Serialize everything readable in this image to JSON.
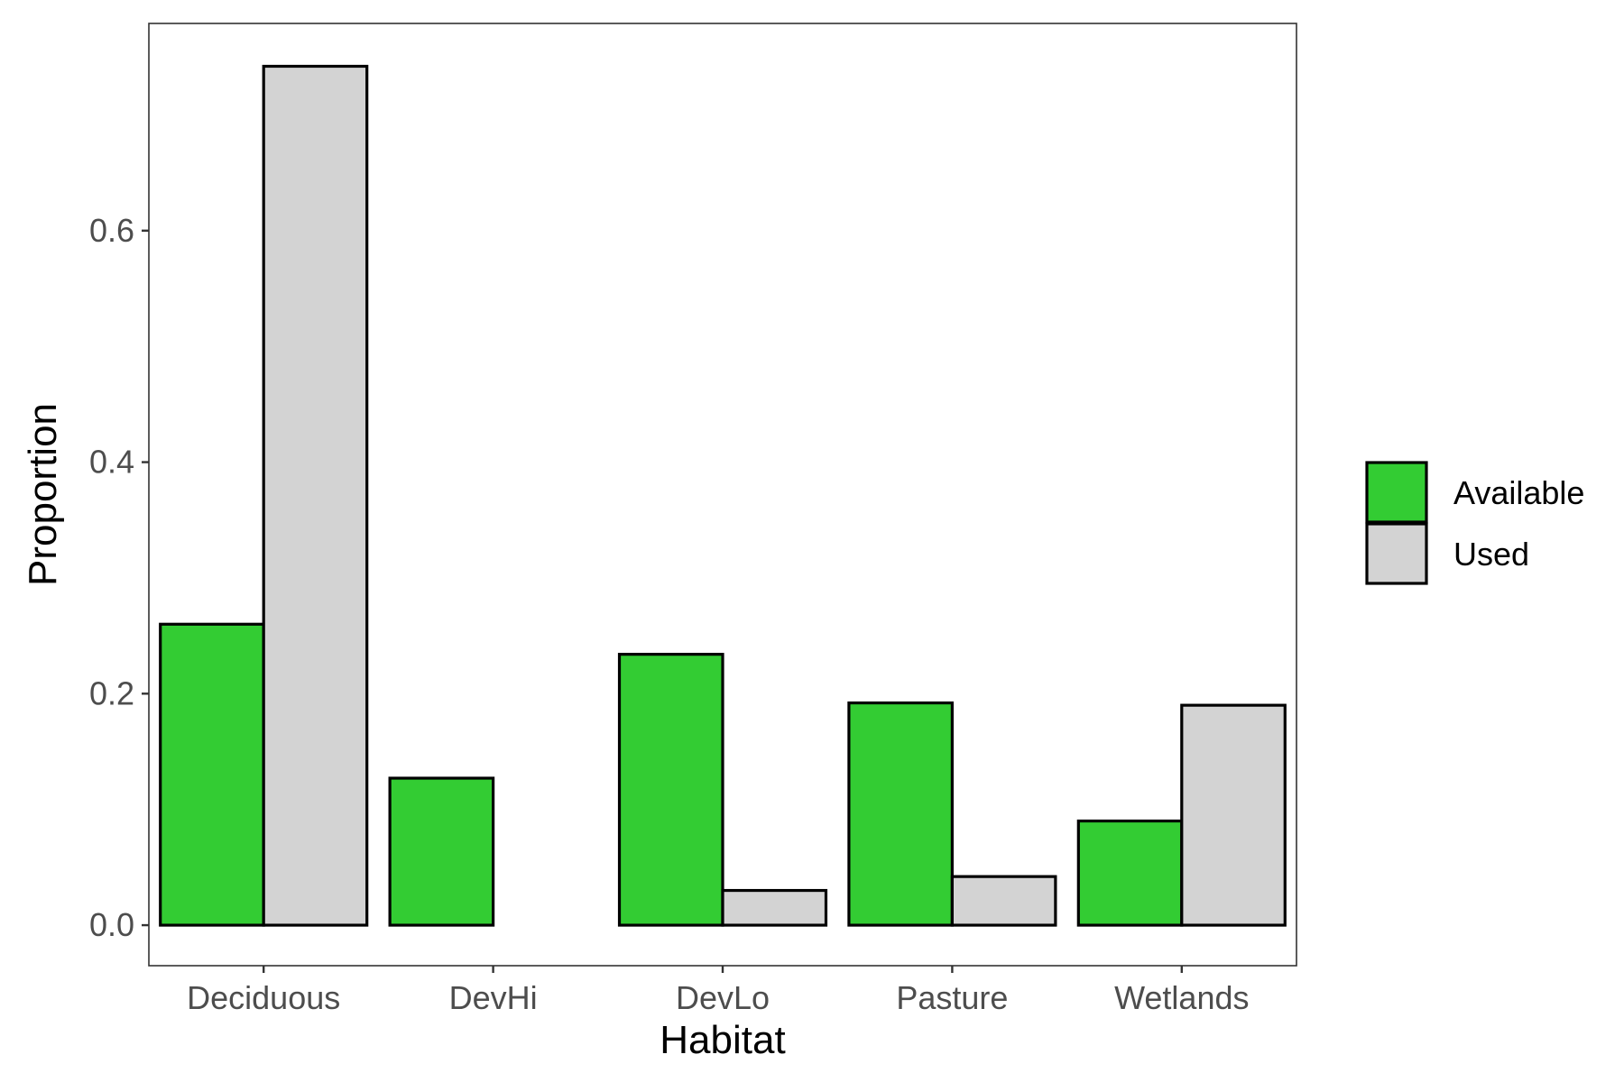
{
  "chart_data": {
    "type": "bar",
    "title": "",
    "xlabel": "Habitat",
    "ylabel": "Proportion",
    "categories": [
      "Deciduous",
      "DevHi",
      "DevLo",
      "Pasture",
      "Wetlands"
    ],
    "series": [
      {
        "name": "Available",
        "color": "#33cc33",
        "values": [
          0.26,
          0.127,
          0.234,
          0.192,
          0.09
        ]
      },
      {
        "name": "Used",
        "color": "#d3d3d3",
        "values": [
          0.742,
          0.0,
          0.03,
          0.042,
          0.19
        ]
      }
    ],
    "ylim": [
      -0.035,
      0.779
    ],
    "yticks": [
      0.0,
      0.2,
      0.4,
      0.6
    ],
    "ytick_labels": [
      "0.0",
      "0.2",
      "0.4",
      "0.6"
    ],
    "grid": false,
    "legend_position": "right",
    "bar_outline_color": "#000000",
    "panel_border_color": "#333333"
  }
}
